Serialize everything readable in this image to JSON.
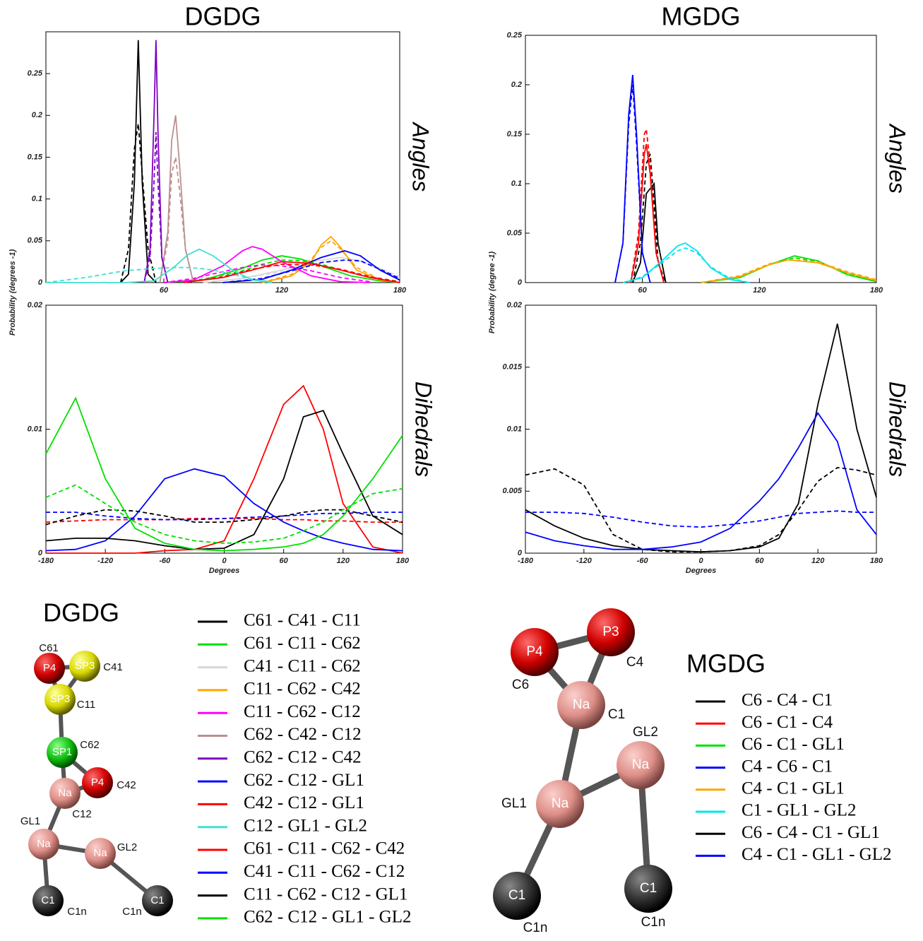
{
  "chart_data": [
    {
      "type": "line",
      "title": "DGDG",
      "side_label": "Angles",
      "y_label": "Probability (degrees -1)",
      "xlim": [
        0,
        180
      ],
      "xticks": [
        60,
        120,
        180
      ],
      "ylim": [
        0,
        0.3
      ],
      "yticks": [
        0,
        0.05,
        0.1,
        0.15,
        0.2,
        0.25
      ],
      "series": [
        {
          "name": "C61 - C41 - C11",
          "color": "#000000",
          "x": [
            38,
            42,
            45,
            47,
            49,
            52,
            56
          ],
          "values": [
            0,
            0.01,
            0.12,
            0.29,
            0.12,
            0.01,
            0
          ],
          "dashed_values": [
            0,
            0.04,
            0.16,
            0.19,
            0.13,
            0.04,
            0
          ]
        },
        {
          "name": "C61 - C11 - C62",
          "color": "#00e000",
          "x": [
            60,
            80,
            100,
            110,
            120,
            130,
            140,
            155,
            170,
            180
          ],
          "values": [
            0,
            0.003,
            0.017,
            0.027,
            0.032,
            0.028,
            0.02,
            0.008,
            0.002,
            0
          ],
          "dashed_values": [
            0,
            0.004,
            0.014,
            0.022,
            0.027,
            0.026,
            0.022,
            0.012,
            0.004,
            0.001
          ]
        },
        {
          "name": "C41 - C11 - C62",
          "color": "#d8d8d8",
          "x": [
            80,
            100,
            120,
            135,
            150,
            160,
            170,
            180
          ],
          "values": [
            0,
            0.005,
            0.015,
            0.025,
            0.03,
            0.026,
            0.015,
            0.005
          ],
          "dashed_values": [
            0,
            0.005,
            0.013,
            0.022,
            0.027,
            0.025,
            0.017,
            0.007
          ]
        },
        {
          "name": "C11 - C62 - C42",
          "color": "#ffa500",
          "x": [
            110,
            125,
            135,
            140,
            145,
            150,
            158,
            170,
            180
          ],
          "values": [
            0,
            0.008,
            0.025,
            0.045,
            0.055,
            0.042,
            0.015,
            0.003,
            0
          ],
          "dashed_values": [
            0,
            0.01,
            0.028,
            0.042,
            0.05,
            0.04,
            0.018,
            0.004,
            0
          ]
        },
        {
          "name": "C11 - C62 - C12",
          "color": "#ff00ff",
          "x": [
            60,
            75,
            90,
            100,
            105,
            110,
            120,
            135,
            150,
            165
          ],
          "values": [
            0,
            0.003,
            0.02,
            0.038,
            0.043,
            0.04,
            0.025,
            0.008,
            0.001,
            0
          ],
          "dashed_values": [
            0,
            0.005,
            0.013,
            0.018,
            0.02,
            0.021,
            0.02,
            0.014,
            0.006,
            0.001
          ]
        },
        {
          "name": "C62 - C42 - C12",
          "color": "#bc8f8f",
          "x": [
            58,
            62,
            64,
            66,
            68,
            71,
            75
          ],
          "values": [
            0,
            0.06,
            0.17,
            0.2,
            0.14,
            0.04,
            0
          ],
          "dashed_values": [
            0,
            0.05,
            0.13,
            0.15,
            0.11,
            0.04,
            0
          ]
        },
        {
          "name": "C62 - C12 - C42",
          "color": "#8000c0",
          "x": [
            50,
            53,
            55,
            56,
            57,
            59,
            62
          ],
          "values": [
            0,
            0.04,
            0.2,
            0.29,
            0.18,
            0.03,
            0
          ],
          "dashed_values": [
            0,
            0.03,
            0.12,
            0.18,
            0.12,
            0.03,
            0
          ]
        },
        {
          "name": "C62 - C12 - GL1",
          "color": "#0000ff",
          "x": [
            90,
            110,
            125,
            140,
            152,
            160,
            170,
            180
          ],
          "values": [
            0,
            0.004,
            0.015,
            0.03,
            0.038,
            0.032,
            0.015,
            0.003
          ],
          "dashed_values": [
            0,
            0.005,
            0.014,
            0.024,
            0.027,
            0.026,
            0.016,
            0.005
          ]
        },
        {
          "name": "C42 - C12 - GL1",
          "color": "#ff0000",
          "x": [
            70,
            90,
            105,
            120,
            135,
            150,
            165,
            180
          ],
          "values": [
            0,
            0.006,
            0.015,
            0.025,
            0.023,
            0.015,
            0.006,
            0
          ],
          "dashed_values": [
            0,
            0.007,
            0.016,
            0.022,
            0.021,
            0.016,
            0.007,
            0.001
          ]
        },
        {
          "name": "C12 - GL1 - GL2",
          "color": "#40e0d0",
          "x": [
            0,
            20,
            40,
            55,
            65,
            72,
            78,
            85,
            95,
            105,
            115
          ],
          "values": [
            0,
            0,
            0,
            0.002,
            0.018,
            0.033,
            0.04,
            0.032,
            0.015,
            0.003,
            0
          ],
          "dashed_values": [
            0,
            0.006,
            0.014,
            0.017,
            0.018,
            0.018,
            0.017,
            0.015,
            0.01,
            0.004,
            0.001
          ]
        }
      ]
    },
    {
      "type": "line",
      "side_label": "Dihedrals",
      "x_label": "Degrees",
      "xlim": [
        -180,
        180
      ],
      "xticks": [
        -180,
        -120,
        -60,
        0,
        60,
        120,
        180
      ],
      "ylim": [
        0,
        0.02
      ],
      "yticks": [
        0,
        0.01,
        0.02
      ],
      "x": [
        -180,
        -150,
        -120,
        -90,
        -60,
        -30,
        0,
        30,
        60,
        80,
        100,
        120,
        150,
        180
      ],
      "series": [
        {
          "name": "C61 - C11 - C62 - C42",
          "color": "#ff0000",
          "values": [
            0,
            0,
            0,
            0,
            0.0002,
            0.0003,
            0.001,
            0.006,
            0.012,
            0.0135,
            0.01,
            0.004,
            0.0005,
            0
          ],
          "dashed_values": [
            0.0025,
            0.0026,
            0.0027,
            0.0027,
            0.0027,
            0.0028,
            0.0028,
            0.0028,
            0.0027,
            0.0027,
            0.0026,
            0.0026,
            0.0025,
            0.0025
          ]
        },
        {
          "name": "C41 - C11 - C62 - C12",
          "color": "#0000ff",
          "values": [
            0.0002,
            0.0003,
            0.001,
            0.003,
            0.006,
            0.0068,
            0.0062,
            0.004,
            0.0025,
            0.0018,
            0.0012,
            0.0008,
            0.0003,
            0.0002
          ],
          "dashed_values": [
            0.0033,
            0.0033,
            0.003,
            0.0028,
            0.0027,
            0.0027,
            0.0028,
            0.0029,
            0.003,
            0.0031,
            0.0032,
            0.0032,
            0.0033,
            0.0033
          ]
        },
        {
          "name": "C11 - C62 - C12 - GL1",
          "color": "#000000",
          "values": [
            0.001,
            0.0012,
            0.0012,
            0.001,
            0.0006,
            0.0003,
            0.0004,
            0.0015,
            0.006,
            0.011,
            0.0115,
            0.008,
            0.003,
            0.0015
          ],
          "dashed_values": [
            0.0023,
            0.003,
            0.0035,
            0.0034,
            0.003,
            0.0025,
            0.0025,
            0.0027,
            0.003,
            0.0033,
            0.0035,
            0.0035,
            0.003,
            0.0025
          ]
        },
        {
          "name": "C62 - C12 - GL1 - GL2",
          "color": "#00e000",
          "values": [
            0.008,
            0.0125,
            0.006,
            0.002,
            0.0008,
            0.0003,
            0.0002,
            0.0003,
            0.0005,
            0.0008,
            0.0015,
            0.003,
            0.006,
            0.0095
          ],
          "dashed_values": [
            0.0045,
            0.0055,
            0.004,
            0.0025,
            0.0015,
            0.001,
            0.0008,
            0.0009,
            0.0012,
            0.0018,
            0.0025,
            0.0035,
            0.0048,
            0.0052
          ]
        }
      ]
    },
    {
      "type": "line",
      "title": "MGDG",
      "side_label": "Angles",
      "y_label": "Probability (degree -1)",
      "xlim": [
        0,
        180
      ],
      "xticks": [
        60,
        120,
        180
      ],
      "ylim": [
        0,
        0.25
      ],
      "yticks": [
        0,
        0.05,
        0.1,
        0.15,
        0.2,
        0.25
      ],
      "series": [
        {
          "name": "C6 - C4 - C1",
          "color": "#000000",
          "x": [
            55,
            59,
            62,
            64,
            66,
            68,
            72
          ],
          "values": [
            0,
            0.02,
            0.09,
            0.095,
            0.1,
            0.04,
            0
          ],
          "dashed_values": [
            0,
            0.04,
            0.12,
            0.13,
            0.08,
            0.02,
            0
          ]
        },
        {
          "name": "C6 - C1 - C4",
          "color": "#ff0000",
          "x": [
            54,
            58,
            61,
            62,
            64,
            67,
            71
          ],
          "values": [
            0,
            0.04,
            0.13,
            0.14,
            0.11,
            0.03,
            0
          ],
          "dashed_values": [
            0,
            0.05,
            0.15,
            0.155,
            0.12,
            0.03,
            0
          ]
        },
        {
          "name": "C6 - C1 - GL1",
          "color": "#00e000",
          "x": [
            90,
            110,
            125,
            138,
            150,
            165,
            180
          ],
          "values": [
            0,
            0.005,
            0.018,
            0.027,
            0.022,
            0.008,
            0.001
          ],
          "dashed_values": [
            0,
            0.006,
            0.018,
            0.025,
            0.021,
            0.009,
            0.002
          ]
        },
        {
          "name": "C4 - C6 - C1",
          "color": "#0000ff",
          "x": [
            46,
            50,
            53,
            55,
            57,
            60,
            64
          ],
          "values": [
            0,
            0.04,
            0.17,
            0.21,
            0.15,
            0.03,
            0
          ],
          "dashed_values": [
            0,
            0.04,
            0.16,
            0.2,
            0.14,
            0.03,
            0
          ]
        },
        {
          "name": "C4 - C1 - GL1",
          "color": "#ffa500",
          "x": [
            90,
            110,
            125,
            135,
            150,
            165,
            180
          ],
          "values": [
            0,
            0.006,
            0.018,
            0.023,
            0.02,
            0.01,
            0.002
          ],
          "dashed_values": [
            0,
            0.007,
            0.019,
            0.023,
            0.021,
            0.011,
            0.003
          ]
        },
        {
          "name": "C1 - GL1 - GL2",
          "color": "#00e5ee",
          "x": [
            50,
            60,
            70,
            78,
            82,
            88,
            95,
            105,
            115
          ],
          "values": [
            0,
            0.005,
            0.022,
            0.037,
            0.04,
            0.032,
            0.015,
            0.003,
            0
          ],
          "dashed_values": [
            0,
            0.006,
            0.02,
            0.032,
            0.035,
            0.03,
            0.016,
            0.004,
            0
          ]
        }
      ]
    },
    {
      "type": "line",
      "side_label": "Dihedrals",
      "x_label": "Degrees",
      "xlim": [
        -180,
        180
      ],
      "xticks": [
        -180,
        -120,
        -60,
        0,
        60,
        120,
        180
      ],
      "ylim": [
        0,
        0.02
      ],
      "yticks": [
        0,
        0.005,
        0.01,
        0.015,
        0.02
      ],
      "x": [
        -180,
        -150,
        -120,
        -90,
        -60,
        -30,
        0,
        30,
        60,
        80,
        100,
        120,
        140,
        160,
        180
      ],
      "series": [
        {
          "name": "C6 - C4 - C1 - GL1",
          "color": "#000000",
          "values": [
            0.0035,
            0.0022,
            0.0012,
            0.0006,
            0.0003,
            0.0002,
            0.0001,
            0.0002,
            0.0005,
            0.0012,
            0.004,
            0.012,
            0.0185,
            0.01,
            0.0045
          ],
          "dashed_values": [
            0.0063,
            0.0068,
            0.0055,
            0.0015,
            0.0003,
            0.0001,
            0.0001,
            0.0002,
            0.0006,
            0.0015,
            0.0035,
            0.0058,
            0.0069,
            0.0067,
            0.0063
          ]
        },
        {
          "name": "C4 - C1 - GL1 - GL2",
          "color": "#0000ff",
          "values": [
            0.0017,
            0.001,
            0.0006,
            0.0003,
            0.0003,
            0.0005,
            0.0009,
            0.002,
            0.0042,
            0.006,
            0.0085,
            0.0113,
            0.009,
            0.0035,
            0.0015
          ],
          "dashed_values": [
            0.0033,
            0.0033,
            0.0032,
            0.0029,
            0.0025,
            0.0022,
            0.0021,
            0.0023,
            0.0026,
            0.0029,
            0.0032,
            0.0033,
            0.0034,
            0.0033,
            0.0033
          ]
        }
      ]
    }
  ],
  "diagrams": [
    {
      "title": "DGDG",
      "beads": [
        {
          "label": "P4",
          "site": "C61"
        },
        {
          "label": "SP3",
          "site": "C41"
        },
        {
          "label": "SP3",
          "site": "C11"
        },
        {
          "label": "SP1",
          "site": "C62"
        },
        {
          "label": "P4",
          "site": "C42"
        },
        {
          "label": "Na",
          "site": "C12"
        },
        {
          "label": "Na",
          "site": "GL1"
        },
        {
          "label": "Na",
          "site": "GL2"
        },
        {
          "label": "C1",
          "site": "C1n"
        },
        {
          "label": "C1",
          "site": "C1n"
        }
      ]
    },
    {
      "title": "MGDG",
      "beads": [
        {
          "label": "P4",
          "site": "C6"
        },
        {
          "label": "P3",
          "site": "C4"
        },
        {
          "label": "Na",
          "site": "C1"
        },
        {
          "label": "Na",
          "site": "GL1"
        },
        {
          "label": "Na",
          "site": "GL2"
        },
        {
          "label": "C1",
          "site": "C1n"
        },
        {
          "label": "C1",
          "site": "C1n"
        }
      ]
    }
  ]
}
